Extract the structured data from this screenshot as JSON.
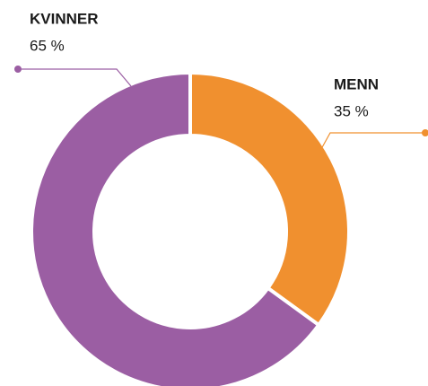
{
  "chart_data": {
    "type": "donut",
    "categories": [
      "MENN",
      "KVINNER"
    ],
    "values": [
      35,
      65
    ],
    "value_labels": [
      "35 %",
      "65 %"
    ],
    "colors": [
      "#f0902f",
      "#9b5ea3"
    ]
  }
}
